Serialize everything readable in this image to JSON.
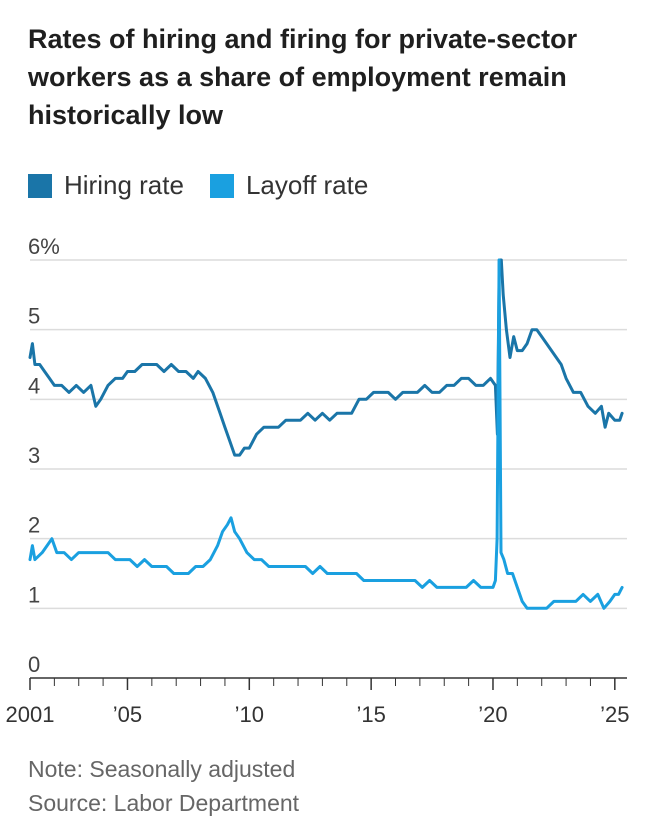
{
  "title": "Rates of hiring and firing for private-sector workers as a share of employment remain historically low",
  "note": "Note: Seasonally adjusted",
  "source": "Source: Labor Department",
  "colors": {
    "hiring": "#1a75a8",
    "layoff": "#1aa0e0",
    "grid": "#dcdcdc",
    "axis": "#333333"
  },
  "chart_data": {
    "type": "line",
    "title": "Rates of hiring and firing for private-sector workers as a share of employment remain historically low",
    "xlabel": "",
    "ylabel": "",
    "xlim": [
      2001,
      2025.5
    ],
    "ylim": [
      0,
      6
    ],
    "y_ticks": [
      {
        "value": 0,
        "label": "0"
      },
      {
        "value": 1,
        "label": "1"
      },
      {
        "value": 2,
        "label": "2"
      },
      {
        "value": 3,
        "label": "3"
      },
      {
        "value": 4,
        "label": "4"
      },
      {
        "value": 5,
        "label": "5"
      },
      {
        "value": 6,
        "label": "6%"
      }
    ],
    "x_ticks": [
      {
        "value": 2001,
        "label": "2001"
      },
      {
        "value": 2005,
        "label": "’05"
      },
      {
        "value": 2010,
        "label": "’10"
      },
      {
        "value": 2015,
        "label": "’15"
      },
      {
        "value": 2020,
        "label": "’20"
      },
      {
        "value": 2025,
        "label": "’25"
      }
    ],
    "series": [
      {
        "name": "Hiring rate",
        "color": "#1a75a8",
        "points": [
          [
            2001.0,
            4.6
          ],
          [
            2001.1,
            4.8
          ],
          [
            2001.2,
            4.5
          ],
          [
            2001.4,
            4.5
          ],
          [
            2001.6,
            4.4
          ],
          [
            2001.8,
            4.3
          ],
          [
            2002.0,
            4.2
          ],
          [
            2002.3,
            4.2
          ],
          [
            2002.6,
            4.1
          ],
          [
            2002.9,
            4.2
          ],
          [
            2003.2,
            4.1
          ],
          [
            2003.5,
            4.2
          ],
          [
            2003.7,
            3.9
          ],
          [
            2003.9,
            4.0
          ],
          [
            2004.2,
            4.2
          ],
          [
            2004.5,
            4.3
          ],
          [
            2004.8,
            4.3
          ],
          [
            2005.0,
            4.4
          ],
          [
            2005.3,
            4.4
          ],
          [
            2005.6,
            4.5
          ],
          [
            2005.9,
            4.5
          ],
          [
            2006.2,
            4.5
          ],
          [
            2006.5,
            4.4
          ],
          [
            2006.8,
            4.5
          ],
          [
            2007.1,
            4.4
          ],
          [
            2007.4,
            4.4
          ],
          [
            2007.7,
            4.3
          ],
          [
            2007.9,
            4.4
          ],
          [
            2008.2,
            4.3
          ],
          [
            2008.5,
            4.1
          ],
          [
            2008.8,
            3.8
          ],
          [
            2009.0,
            3.6
          ],
          [
            2009.2,
            3.4
          ],
          [
            2009.4,
            3.2
          ],
          [
            2009.6,
            3.2
          ],
          [
            2009.8,
            3.3
          ],
          [
            2010.0,
            3.3
          ],
          [
            2010.3,
            3.5
          ],
          [
            2010.6,
            3.6
          ],
          [
            2010.9,
            3.6
          ],
          [
            2011.2,
            3.6
          ],
          [
            2011.5,
            3.7
          ],
          [
            2011.8,
            3.7
          ],
          [
            2012.1,
            3.7
          ],
          [
            2012.4,
            3.8
          ],
          [
            2012.7,
            3.7
          ],
          [
            2013.0,
            3.8
          ],
          [
            2013.3,
            3.7
          ],
          [
            2013.6,
            3.8
          ],
          [
            2013.9,
            3.8
          ],
          [
            2014.2,
            3.8
          ],
          [
            2014.5,
            4.0
          ],
          [
            2014.8,
            4.0
          ],
          [
            2015.1,
            4.1
          ],
          [
            2015.4,
            4.1
          ],
          [
            2015.7,
            4.1
          ],
          [
            2016.0,
            4.0
          ],
          [
            2016.3,
            4.1
          ],
          [
            2016.6,
            4.1
          ],
          [
            2016.9,
            4.1
          ],
          [
            2017.2,
            4.2
          ],
          [
            2017.5,
            4.1
          ],
          [
            2017.8,
            4.1
          ],
          [
            2018.1,
            4.2
          ],
          [
            2018.4,
            4.2
          ],
          [
            2018.7,
            4.3
          ],
          [
            2019.0,
            4.3
          ],
          [
            2019.3,
            4.2
          ],
          [
            2019.6,
            4.2
          ],
          [
            2019.9,
            4.3
          ],
          [
            2020.1,
            4.2
          ],
          [
            2020.18,
            3.5
          ],
          [
            2020.26,
            6.0
          ],
          [
            2020.34,
            6.0
          ],
          [
            2020.42,
            5.5
          ],
          [
            2020.55,
            5.0
          ],
          [
            2020.7,
            4.6
          ],
          [
            2020.85,
            4.9
          ],
          [
            2021.0,
            4.7
          ],
          [
            2021.2,
            4.7
          ],
          [
            2021.4,
            4.8
          ],
          [
            2021.6,
            5.0
          ],
          [
            2021.8,
            5.0
          ],
          [
            2022.0,
            4.9
          ],
          [
            2022.2,
            4.8
          ],
          [
            2022.4,
            4.7
          ],
          [
            2022.6,
            4.6
          ],
          [
            2022.8,
            4.5
          ],
          [
            2023.0,
            4.3
          ],
          [
            2023.3,
            4.1
          ],
          [
            2023.6,
            4.1
          ],
          [
            2023.9,
            3.9
          ],
          [
            2024.2,
            3.8
          ],
          [
            2024.45,
            3.9
          ],
          [
            2024.6,
            3.6
          ],
          [
            2024.75,
            3.8
          ],
          [
            2025.0,
            3.7
          ],
          [
            2025.2,
            3.7
          ],
          [
            2025.3,
            3.8
          ]
        ]
      },
      {
        "name": "Layoff rate",
        "color": "#1aa0e0",
        "points": [
          [
            2001.0,
            1.7
          ],
          [
            2001.1,
            1.9
          ],
          [
            2001.2,
            1.7
          ],
          [
            2001.5,
            1.8
          ],
          [
            2001.7,
            1.9
          ],
          [
            2001.9,
            2.0
          ],
          [
            2002.1,
            1.8
          ],
          [
            2002.4,
            1.8
          ],
          [
            2002.7,
            1.7
          ],
          [
            2003.0,
            1.8
          ],
          [
            2003.3,
            1.8
          ],
          [
            2003.6,
            1.8
          ],
          [
            2003.9,
            1.8
          ],
          [
            2004.2,
            1.8
          ],
          [
            2004.5,
            1.7
          ],
          [
            2004.8,
            1.7
          ],
          [
            2005.1,
            1.7
          ],
          [
            2005.4,
            1.6
          ],
          [
            2005.7,
            1.7
          ],
          [
            2006.0,
            1.6
          ],
          [
            2006.3,
            1.6
          ],
          [
            2006.6,
            1.6
          ],
          [
            2006.9,
            1.5
          ],
          [
            2007.2,
            1.5
          ],
          [
            2007.5,
            1.5
          ],
          [
            2007.8,
            1.6
          ],
          [
            2008.1,
            1.6
          ],
          [
            2008.4,
            1.7
          ],
          [
            2008.7,
            1.9
          ],
          [
            2008.9,
            2.1
          ],
          [
            2009.1,
            2.2
          ],
          [
            2009.25,
            2.3
          ],
          [
            2009.4,
            2.1
          ],
          [
            2009.6,
            2.0
          ],
          [
            2009.9,
            1.8
          ],
          [
            2010.2,
            1.7
          ],
          [
            2010.5,
            1.7
          ],
          [
            2010.8,
            1.6
          ],
          [
            2011.1,
            1.6
          ],
          [
            2011.4,
            1.6
          ],
          [
            2011.7,
            1.6
          ],
          [
            2012.0,
            1.6
          ],
          [
            2012.3,
            1.6
          ],
          [
            2012.6,
            1.5
          ],
          [
            2012.9,
            1.6
          ],
          [
            2013.2,
            1.5
          ],
          [
            2013.5,
            1.5
          ],
          [
            2013.8,
            1.5
          ],
          [
            2014.1,
            1.5
          ],
          [
            2014.4,
            1.5
          ],
          [
            2014.7,
            1.4
          ],
          [
            2015.0,
            1.4
          ],
          [
            2015.3,
            1.4
          ],
          [
            2015.6,
            1.4
          ],
          [
            2015.9,
            1.4
          ],
          [
            2016.2,
            1.4
          ],
          [
            2016.5,
            1.4
          ],
          [
            2016.8,
            1.4
          ],
          [
            2017.1,
            1.3
          ],
          [
            2017.4,
            1.4
          ],
          [
            2017.7,
            1.3
          ],
          [
            2018.0,
            1.3
          ],
          [
            2018.3,
            1.3
          ],
          [
            2018.6,
            1.3
          ],
          [
            2018.9,
            1.3
          ],
          [
            2019.2,
            1.4
          ],
          [
            2019.5,
            1.3
          ],
          [
            2019.8,
            1.3
          ],
          [
            2020.0,
            1.3
          ],
          [
            2020.1,
            1.4
          ],
          [
            2020.17,
            2.0
          ],
          [
            2020.25,
            6.0
          ],
          [
            2020.33,
            1.8
          ],
          [
            2020.45,
            1.7
          ],
          [
            2020.6,
            1.5
          ],
          [
            2020.8,
            1.5
          ],
          [
            2021.0,
            1.3
          ],
          [
            2021.2,
            1.1
          ],
          [
            2021.4,
            1.0
          ],
          [
            2021.6,
            1.0
          ],
          [
            2021.9,
            1.0
          ],
          [
            2022.2,
            1.0
          ],
          [
            2022.5,
            1.1
          ],
          [
            2022.8,
            1.1
          ],
          [
            2023.1,
            1.1
          ],
          [
            2023.4,
            1.1
          ],
          [
            2023.7,
            1.2
          ],
          [
            2024.0,
            1.1
          ],
          [
            2024.3,
            1.2
          ],
          [
            2024.55,
            1.0
          ],
          [
            2024.8,
            1.1
          ],
          [
            2025.0,
            1.2
          ],
          [
            2025.15,
            1.2
          ],
          [
            2025.3,
            1.3
          ]
        ]
      }
    ]
  }
}
